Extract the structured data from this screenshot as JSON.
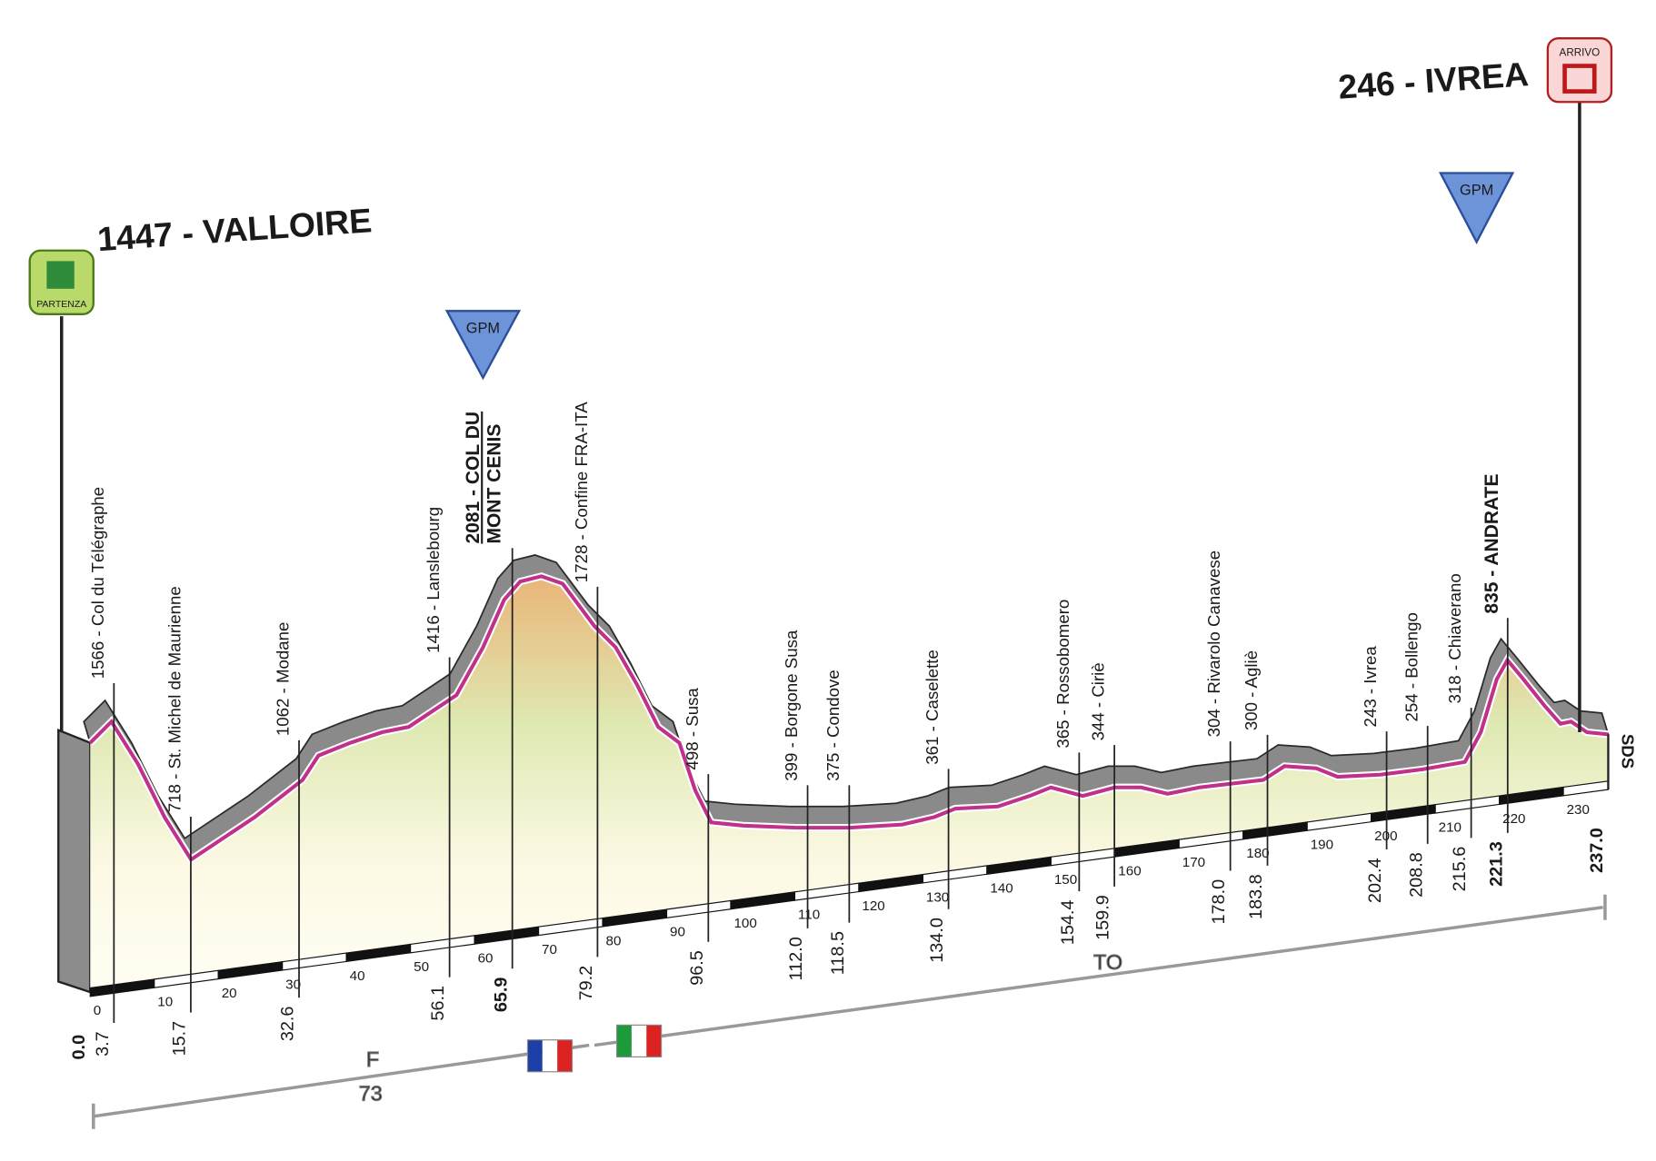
{
  "start": {
    "label": "1447 - VALLOIRE",
    "badge": "PARTENZA",
    "km": "0.0"
  },
  "finish": {
    "label": "246 - IVREA",
    "badge": "ARRIVO",
    "km": "237.0"
  },
  "markers": [
    {
      "label": "GPM"
    },
    {
      "label": "GPM"
    }
  ],
  "waypoints": [
    {
      "name": "1566 - Col du Télégraphe",
      "km": "3.7"
    },
    {
      "name": "718 - St. Michel de Maurienne",
      "km": "15.7"
    },
    {
      "name": "1062 - Modane",
      "km": "32.6"
    },
    {
      "name": "1416 - Lanslebourg",
      "km": "56.1"
    },
    {
      "name": "2081 - COL DU",
      "name2": "MONT CENIS",
      "km": "65.9",
      "bold": true
    },
    {
      "name": "1728 - Confine FRA-ITA",
      "km": "79.2"
    },
    {
      "name": "498 - Susa",
      "km": "96.5"
    },
    {
      "name": "399 - Borgone Susa",
      "km": "112.0"
    },
    {
      "name": "375 - Condove",
      "km": "118.5"
    },
    {
      "name": "361 - Caselette",
      "km": "134.0"
    },
    {
      "name": "365 - Rossobomero",
      "km": "154.4"
    },
    {
      "name": "344 - Ciriè",
      "km": "159.9"
    },
    {
      "name": "304 - Rivarolo Canavese",
      "km": "178.0"
    },
    {
      "name": "300 - Agliè",
      "km": "183.8"
    },
    {
      "name": "243 - Ivrea",
      "km": "202.4"
    },
    {
      "name": "254 - Bollengo",
      "km": "208.8"
    },
    {
      "name": "318 - Chiaverano",
      "km": "215.6"
    },
    {
      "name": "835 - ANDRATE",
      "km": "221.3",
      "bold": true
    }
  ],
  "km_ticks": [
    0,
    10,
    20,
    30,
    40,
    50,
    60,
    70,
    80,
    90,
    100,
    110,
    120,
    130,
    140,
    150,
    160,
    170,
    180,
    190,
    200,
    210,
    220,
    230
  ],
  "regions": {
    "france": "F",
    "france_km": "73",
    "italy": "TO"
  },
  "finish_note": "SDS"
}
